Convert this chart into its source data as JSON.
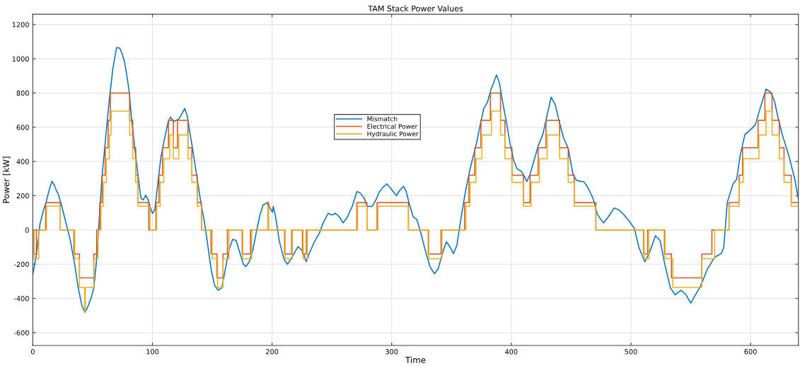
{
  "chart_data": {
    "type": "line",
    "title": "TAM Stack Power Values",
    "xlabel": "Time",
    "ylabel": "Power [kW]",
    "xlim": [
      0,
      640
    ],
    "xticks": [
      0,
      100,
      200,
      300,
      400,
      500,
      600
    ],
    "ylim": [
      -675,
      1260
    ],
    "yticks": [
      -600,
      -400,
      -200,
      0,
      200,
      400,
      600,
      800,
      1000,
      1200
    ],
    "grid": true,
    "legend": "center",
    "line_style": "solid",
    "marker": "none",
    "series": [
      {
        "name": "Mismatch",
        "color": "#0072bd",
        "x": [
          0,
          3,
          6,
          9,
          11,
          14,
          16,
          18,
          20,
          21,
          24,
          27.5,
          31.4,
          35,
          38,
          41,
          43.6,
          46,
          49,
          51,
          53,
          55,
          58,
          61,
          64,
          67,
          70,
          72.7,
          74.7,
          76.6,
          78.6,
          80.6,
          82.5,
          85.5,
          88.4,
          90.4,
          92.3,
          94.3,
          96.3,
          98,
          100,
          102,
          104,
          107,
          110,
          113,
          115,
          118,
          122,
          125,
          127,
          129,
          131.6,
          134.5,
          137.5,
          140.5,
          143.4,
          146,
          149,
          152,
          155,
          158,
          161,
          164,
          167,
          170,
          173,
          176,
          178,
          181,
          184,
          187,
          190,
          192.5,
          196.5,
          198,
          200.4,
          201,
          203,
          206,
          210,
          213,
          216.7,
          221.7,
          225.6,
          228.5,
          231.5,
          235.4,
          239.4,
          242.3,
          245.3,
          247,
          250,
          253,
          256,
          259.4,
          263,
          267,
          271,
          274,
          277,
          279.7,
          283.7,
          286.6,
          289.6,
          292.5,
          296,
          299.4,
          304,
          307,
          309.8,
          312,
          315,
          318,
          321,
          325,
          328,
          332,
          335.8,
          338.8,
          342.7,
          345.7,
          348.6,
          351.6,
          354.5,
          357.5,
          361.4,
          365.4,
          368.3,
          371.3,
          374,
          377,
          380,
          383,
          385,
          387.6,
          390,
          393,
          396,
          399,
          402,
          404.7,
          408.7,
          410.6,
          413,
          415.6,
          418.5,
          422.4,
          426.4,
          429,
          433.3,
          436.8,
          439.8,
          443.7,
          447.6,
          451.6,
          454.5,
          458.5,
          460.4,
          463.4,
          468.3,
          472,
          477,
          481,
          486,
          490,
          494,
          499,
          503,
          506.7,
          511.6,
          515.6,
          520.5,
          524.4,
          528.3,
          533,
          537,
          542,
          546,
          550,
          554,
          558,
          564,
          570,
          575.6,
          577.6,
          580.5,
          585.4,
          588.4,
          591.3,
          595.3,
          600,
          604,
          608,
          613,
          617,
          620,
          623,
          627,
          632,
          637,
          640
        ],
        "values": [
          -262,
          -145,
          35,
          117,
          159,
          241,
          285,
          262,
          225,
          216,
          145,
          48,
          -62,
          -200,
          -338,
          -441,
          -483,
          -448,
          -393,
          -338,
          -200,
          7,
          324,
          545,
          765,
          945,
          1065,
          1062,
          1027,
          986,
          903,
          807,
          655,
          462,
          296,
          186,
          175,
          203,
          179,
          138,
          97,
          117,
          241,
          421,
          531,
          627,
          659,
          634,
          648,
          683,
          710,
          669,
          558,
          434,
          296,
          159,
          48,
          -76,
          -228,
          -324,
          -352,
          -338,
          -228,
          -117,
          -55,
          -62,
          -131,
          -200,
          -214,
          -186,
          -117,
          -7,
          90,
          145,
          161,
          131,
          103,
          138,
          76,
          -62,
          -172,
          -200,
          -159,
          -97,
          -124,
          -186,
          -131,
          -69,
          -21,
          34,
          76,
          97,
          87,
          97,
          79,
          41,
          76,
          138,
          225,
          214,
          186,
          138,
          138,
          172,
          221,
          248,
          269,
          241,
          200,
          234,
          255,
          228,
          145,
          76,
          62,
          -34,
          -117,
          -214,
          -255,
          -228,
          -131,
          -69,
          -97,
          -138,
          -90,
          48,
          214,
          352,
          434,
          517,
          614,
          710,
          745,
          820,
          855,
          906,
          862,
          738,
          627,
          503,
          407,
          359,
          341,
          317,
          283,
          324,
          393,
          490,
          558,
          641,
          776,
          731,
          641,
          538,
          476,
          324,
          290,
          283,
          283,
          255,
          186,
          90,
          41,
          76,
          128,
          117,
          90,
          48,
          7,
          -103,
          -186,
          -131,
          -34,
          -62,
          -200,
          -338,
          -379,
          -352,
          -379,
          -427,
          -379,
          -331,
          -228,
          -159,
          -138,
          -103,
          159,
          269,
          296,
          434,
          558,
          586,
          614,
          710,
          823,
          803,
          752,
          655,
          545,
          434,
          296,
          180
        ]
      },
      {
        "name": "Electrical Power",
        "color": "#d95319",
        "type": "step",
        "x": [
          0,
          1,
          3,
          10.8,
          23,
          34.4,
          39,
          51,
          53.4,
          56,
          58,
          60.5,
          63,
          64.8,
          81,
          83.5,
          86,
          88,
          97,
          103,
          105.5,
          108.4,
          113.4,
          117.5,
          121,
          129.7,
          133,
          137.5,
          141,
          149,
          154,
          159,
          162.7,
          175,
          182,
          196.5,
          197,
          210.5,
          216.4,
          225.4,
          228.7,
          270.9,
          279.3,
          287.8,
          314,
          330.6,
          341.3,
          361,
          364.6,
          369.5,
          374.6,
          382.5,
          391,
          394.7,
          400.6,
          410.2,
          415.7,
          422.4,
          429,
          440.4,
          447.6,
          452.6,
          470.7,
          510.6,
          514,
          528,
          533.9,
          559.3,
          567.7,
          582,
          590.4,
          593.3,
          606.3,
          612,
          618,
          624,
          628,
          634,
          640
        ],
        "values": [
          0,
          -140,
          0,
          160,
          0,
          -140,
          -280,
          -140,
          0,
          160,
          320,
          480,
          640,
          800,
          640,
          480,
          320,
          160,
          0,
          160,
          320,
          480,
          640,
          480,
          640,
          480,
          320,
          160,
          0,
          -140,
          -280,
          -140,
          0,
          -140,
          0,
          160,
          0,
          -140,
          0,
          -140,
          0,
          160,
          0,
          160,
          0,
          -140,
          0,
          160,
          320,
          480,
          640,
          800,
          640,
          480,
          320,
          160,
          320,
          480,
          640,
          480,
          320,
          160,
          0,
          -140,
          0,
          -140,
          -280,
          -140,
          0,
          160,
          320,
          480,
          640,
          800,
          640,
          480,
          320,
          160,
          160
        ]
      },
      {
        "name": "Hydraulic Power",
        "color": "#edb120",
        "type": "step",
        "x": [
          0,
          1,
          5,
          11.5,
          23,
          35,
          39,
          43.3,
          43.9,
          51,
          54.5,
          57,
          59,
          61.5,
          64,
          65.5,
          81,
          83.5,
          86,
          88,
          98,
          103.5,
          106.5,
          109.5,
          114.5,
          117.5,
          122,
          129.7,
          133,
          137.5,
          141,
          150,
          154.5,
          159,
          164,
          175.5,
          183,
          196.5,
          197,
          211,
          217,
          226,
          229.5,
          271.5,
          279.3,
          288.5,
          314,
          331,
          342,
          362,
          365.5,
          370.5,
          375.5,
          383.5,
          391,
          394.7,
          400.6,
          410.2,
          416.5,
          423.5,
          430,
          440.4,
          447.6,
          452.6,
          470.7,
          511,
          515,
          528.5,
          535,
          559.3,
          570,
          582,
          590.4,
          594,
          607,
          613,
          618,
          624,
          628,
          634,
          640
        ],
        "values": [
          0,
          -168,
          0,
          139,
          0,
          -168,
          -336,
          -480,
          -336,
          -168,
          0,
          139,
          278,
          416,
          555,
          694,
          555,
          416,
          278,
          139,
          0,
          139,
          278,
          416,
          555,
          416,
          555,
          416,
          278,
          139,
          0,
          -168,
          -336,
          -168,
          0,
          -168,
          0,
          139,
          0,
          -168,
          0,
          -168,
          0,
          139,
          0,
          139,
          0,
          -168,
          0,
          139,
          278,
          416,
          555,
          694,
          555,
          416,
          278,
          139,
          278,
          416,
          555,
          416,
          278,
          139,
          0,
          -168,
          0,
          -168,
          -336,
          -168,
          0,
          139,
          278,
          416,
          555,
          694,
          555,
          416,
          278,
          139,
          139
        ]
      }
    ]
  }
}
